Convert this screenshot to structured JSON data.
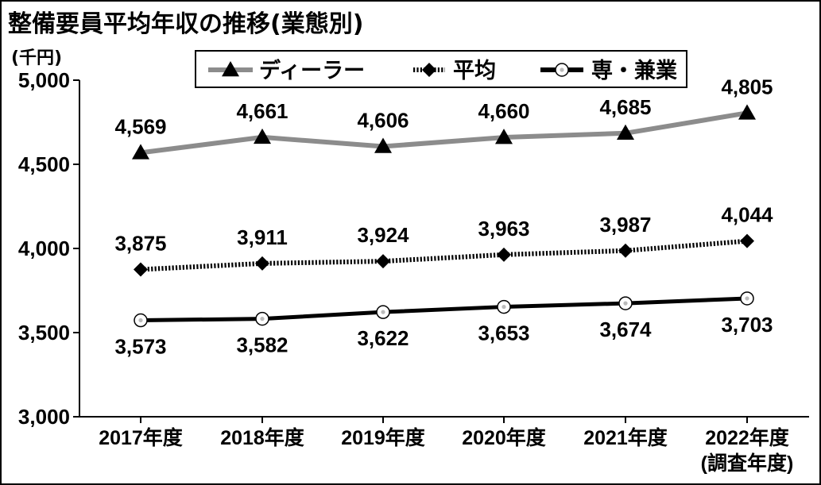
{
  "chart_data": {
    "type": "line",
    "title": "整備要員平均年収の推移(業態別)",
    "ylabel": "(千円)",
    "xlabel": "",
    "ylim": [
      3000,
      5000
    ],
    "yticks": [
      3000,
      3500,
      4000,
      4500,
      5000
    ],
    "ytick_labels": [
      "3,000",
      "3,500",
      "4,000",
      "4,500",
      "5,000"
    ],
    "categories": [
      "2017年度",
      "2018年度",
      "2019年度",
      "2020年度",
      "2021年度",
      "2022年度"
    ],
    "category_note": "(調査年度)",
    "grid": false,
    "legend_position": "top",
    "series": [
      {
        "name": "ディーラー",
        "values": [
          4569,
          4661,
          4606,
          4660,
          4685,
          4805
        ],
        "labels": [
          "4,569",
          "4,661",
          "4,606",
          "4,660",
          "4,685",
          "4,805"
        ],
        "marker": "triangle",
        "line_style": "solid",
        "color": "#8c8c8c",
        "marker_color": "#000000",
        "label_placement": "above"
      },
      {
        "name": "平均",
        "values": [
          3875,
          3911,
          3924,
          3963,
          3987,
          4044
        ],
        "labels": [
          "3,875",
          "3,911",
          "3,924",
          "3,963",
          "3,987",
          "4,044"
        ],
        "marker": "diamond",
        "line_style": "dotted",
        "color": "#000000",
        "marker_color": "#000000",
        "label_placement": "above"
      },
      {
        "name": "専・兼業",
        "values": [
          3573,
          3582,
          3622,
          3653,
          3674,
          3703
        ],
        "labels": [
          "3,573",
          "3,582",
          "3,622",
          "3,653",
          "3,674",
          "3,703"
        ],
        "marker": "circle",
        "line_style": "solid",
        "color": "#000000",
        "marker_color": "#ffffff",
        "label_placement": "below"
      }
    ]
  }
}
